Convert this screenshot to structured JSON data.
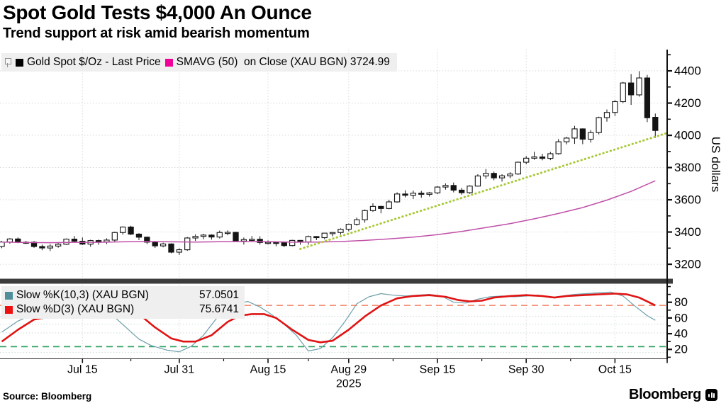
{
  "header": {
    "title": "Spot Gold Tests $4,000 An Ounce",
    "subtitle": "Trend support at risk amid bearish momentum"
  },
  "footer": {
    "source": "Source: Bloomberg",
    "brand": "Bloomberg"
  },
  "colors": {
    "background": "#ffffff",
    "text": "#000000",
    "grid": "#d9d9d9",
    "grid_stoch": "#ccd8d8",
    "divider": "#3c3c3c",
    "candle": "#141414",
    "candle_up_fill": "#ffffff",
    "sma_line": "#c050a8",
    "sma_swatch": "#ee0099",
    "trendline": "#a8c938",
    "k_line": "#6d9faa",
    "k_swatch": "#4f8e9a",
    "d_line": "#e01313",
    "d_swatch": "#ee1111",
    "overbought": "#f08466",
    "oversold": "#2ea35e",
    "legend_bg": "#efefef"
  },
  "chart_data": [
    {
      "type": "candlestick",
      "panel": "price",
      "legend": [
        {
          "label": "Gold Spot $/Oz - Last Price",
          "swatch": "#000000"
        },
        {
          "label": "SMAVG (50)  on Close (XAU BGN) 3724.99",
          "swatch": "#ee0099"
        }
      ],
      "ylabel": "US dollars",
      "ylim": [
        3108,
        4532
      ],
      "yticks": [
        3200,
        3400,
        3600,
        3800,
        4000,
        4200,
        4400
      ],
      "ytick_minor_step": 100,
      "xticks": [
        {
          "i": 10,
          "label": "Jul 15"
        },
        {
          "i": 22,
          "label": "Jul 31"
        },
        {
          "i": 33,
          "label": "Aug 15"
        },
        {
          "i": 43,
          "label": "Aug 29"
        },
        {
          "i": 54,
          "label": "Sep 15"
        },
        {
          "i": 65,
          "label": "Sep 30"
        },
        {
          "i": 76,
          "label": "Oct 15"
        }
      ],
      "year_label": "2025",
      "year_under_tick": 3,
      "grid": true,
      "candles_ohlc": [
        [
          3310,
          3345,
          3300,
          3338
        ],
        [
          3338,
          3362,
          3328,
          3357
        ],
        [
          3357,
          3366,
          3331,
          3336
        ],
        [
          3336,
          3345,
          3326,
          3337
        ],
        [
          3337,
          3344,
          3302,
          3310
        ],
        [
          3310,
          3322,
          3287,
          3301
        ],
        [
          3301,
          3325,
          3282,
          3313
        ],
        [
          3313,
          3331,
          3303,
          3324
        ],
        [
          3324,
          3360,
          3320,
          3356
        ],
        [
          3356,
          3375,
          3338,
          3343
        ],
        [
          3343,
          3366,
          3320,
          3325
        ],
        [
          3325,
          3352,
          3309,
          3347
        ],
        [
          3347,
          3353,
          3321,
          3339
        ],
        [
          3339,
          3361,
          3325,
          3350
        ],
        [
          3350,
          3402,
          3341,
          3397
        ],
        [
          3397,
          3435,
          3384,
          3431
        ],
        [
          3431,
          3439,
          3381,
          3387
        ],
        [
          3387,
          3393,
          3350,
          3368
        ],
        [
          3368,
          3372,
          3325,
          3337
        ],
        [
          3337,
          3345,
          3301,
          3314
        ],
        [
          3314,
          3334,
          3305,
          3326
        ],
        [
          3326,
          3330,
          3268,
          3275
        ],
        [
          3275,
          3299,
          3258,
          3290
        ],
        [
          3290,
          3369,
          3283,
          3363
        ],
        [
          3363,
          3385,
          3345,
          3373
        ],
        [
          3373,
          3389,
          3355,
          3381
        ],
        [
          3381,
          3386,
          3353,
          3369
        ],
        [
          3369,
          3409,
          3360,
          3397
        ],
        [
          3397,
          3410,
          3380,
          3398
        ],
        [
          3398,
          3402,
          3341,
          3344
        ],
        [
          3344,
          3366,
          3322,
          3353
        ],
        [
          3353,
          3375,
          3345,
          3355
        ],
        [
          3355,
          3374,
          3322,
          3335
        ],
        [
          3335,
          3348,
          3323,
          3336
        ],
        [
          3336,
          3341,
          3312,
          3334
        ],
        [
          3334,
          3338,
          3306,
          3316
        ],
        [
          3316,
          3352,
          3311,
          3348
        ],
        [
          3348,
          3351,
          3321,
          3339
        ],
        [
          3339,
          3378,
          3321,
          3372
        ],
        [
          3372,
          3375,
          3350,
          3365
        ],
        [
          3365,
          3395,
          3355,
          3393
        ],
        [
          3393,
          3399,
          3373,
          3397
        ],
        [
          3397,
          3423,
          3384,
          3417
        ],
        [
          3417,
          3453,
          3404,
          3448
        ],
        [
          3448,
          3490,
          3440,
          3476
        ],
        [
          3476,
          3540,
          3458,
          3533
        ],
        [
          3533,
          3578,
          3525,
          3559
        ],
        [
          3559,
          3563,
          3516,
          3546
        ],
        [
          3546,
          3600,
          3541,
          3587
        ],
        [
          3587,
          3646,
          3582,
          3636
        ],
        [
          3636,
          3659,
          3615,
          3628
        ],
        [
          3628,
          3657,
          3605,
          3641
        ],
        [
          3641,
          3655,
          3613,
          3634
        ],
        [
          3634,
          3649,
          3620,
          3643
        ],
        [
          3643,
          3685,
          3635,
          3679
        ],
        [
          3679,
          3702,
          3663,
          3689
        ],
        [
          3689,
          3707,
          3646,
          3660
        ],
        [
          3660,
          3674,
          3632,
          3644
        ],
        [
          3644,
          3690,
          3637,
          3685
        ],
        [
          3685,
          3759,
          3682,
          3748
        ],
        [
          3748,
          3791,
          3730,
          3764
        ],
        [
          3764,
          3775,
          3721,
          3736
        ],
        [
          3736,
          3759,
          3713,
          3749
        ],
        [
          3749,
          3771,
          3734,
          3760
        ],
        [
          3760,
          3837,
          3755,
          3833
        ],
        [
          3833,
          3872,
          3820,
          3858
        ],
        [
          3858,
          3898,
          3848,
          3866
        ],
        [
          3866,
          3885,
          3845,
          3857
        ],
        [
          3857,
          3897,
          3846,
          3886
        ],
        [
          3886,
          3977,
          3880,
          3960
        ],
        [
          3960,
          3990,
          3944,
          3983
        ],
        [
          3983,
          4059,
          3947,
          4040
        ],
        [
          4040,
          4043,
          3945,
          3976
        ],
        [
          3976,
          4032,
          3955,
          4017
        ],
        [
          4017,
          4116,
          4006,
          4110
        ],
        [
          4110,
          4160,
          4085,
          4142
        ],
        [
          4142,
          4218,
          4120,
          4209
        ],
        [
          4209,
          4331,
          4200,
          4325
        ],
        [
          4325,
          4380,
          4189,
          4251
        ],
        [
          4251,
          4398,
          4240,
          4356
        ],
        [
          4356,
          4375,
          4082,
          4109
        ],
        [
          4112,
          4135,
          3984,
          4030
        ]
      ],
      "sma50": {
        "name": "SMAVG (50) on Close (XAU BGN)",
        "last": 3724.99,
        "points": [
          [
            0,
            3338
          ],
          [
            3,
            3335
          ],
          [
            6,
            3334
          ],
          [
            9,
            3336
          ],
          [
            12,
            3336
          ],
          [
            15,
            3339
          ],
          [
            18,
            3341
          ],
          [
            21,
            3339
          ],
          [
            24,
            3338
          ],
          [
            27,
            3340
          ],
          [
            30,
            3341
          ],
          [
            33,
            3340
          ],
          [
            36,
            3337
          ],
          [
            39,
            3338
          ],
          [
            42,
            3341
          ],
          [
            45,
            3348
          ],
          [
            48,
            3357
          ],
          [
            51,
            3368
          ],
          [
            54,
            3384
          ],
          [
            57,
            3404
          ],
          [
            60,
            3428
          ],
          [
            63,
            3452
          ],
          [
            66,
            3482
          ],
          [
            69,
            3515
          ],
          [
            72,
            3552
          ],
          [
            75,
            3598
          ],
          [
            78,
            3652
          ],
          [
            81,
            3718
          ]
        ]
      },
      "trendline": {
        "from": [
          37,
          3295
        ],
        "to": [
          82.5,
          4015
        ]
      }
    },
    {
      "type": "line",
      "panel": "stochastic",
      "legend": [
        {
          "label": "Slow %K(10,3) (XAU BGN)",
          "value": "57.0501",
          "swatch": "#4f8e9a"
        },
        {
          "label": "Slow %D(3) (XAU BGN)",
          "value": "75.6741",
          "swatch": "#ee1111"
        }
      ],
      "ylim": [
        7.6,
        102.3
      ],
      "yticks": [
        20,
        40,
        60,
        80
      ],
      "ytick_minor_step": 10,
      "thresholds": {
        "overbought": 76,
        "oversold": 23.5
      },
      "extra_gridlines": [
        62,
        52,
        41,
        16
      ],
      "series": [
        {
          "name": "Slow %K(10,3)",
          "color": "#6d9faa",
          "width": 1.2,
          "points": [
            [
              0,
              42
            ],
            [
              2,
              56
            ],
            [
              3.5,
              63
            ],
            [
              5,
              59
            ],
            [
              7,
              64
            ],
            [
              9,
              69
            ],
            [
              11,
              73
            ],
            [
              12.5,
              71
            ],
            [
              14,
              61
            ],
            [
              15.5,
              47
            ],
            [
              17,
              33
            ],
            [
              18.5,
              25
            ],
            [
              20.5,
              19
            ],
            [
              22,
              17
            ],
            [
              23.5,
              24
            ],
            [
              25,
              38
            ],
            [
              26.5,
              58
            ],
            [
              28,
              72
            ],
            [
              29.5,
              79
            ],
            [
              30.5,
              81
            ],
            [
              32,
              74
            ],
            [
              33.5,
              64
            ],
            [
              35,
              52
            ],
            [
              36.5,
              38
            ],
            [
              38,
              18
            ],
            [
              39.5,
              21
            ],
            [
              41,
              35
            ],
            [
              42.5,
              55
            ],
            [
              44,
              78
            ],
            [
              45.5,
              87
            ],
            [
              47,
              91
            ],
            [
              48.5,
              89
            ],
            [
              50,
              88
            ],
            [
              51.5,
              89
            ],
            [
              53,
              90
            ],
            [
              54.5,
              88
            ],
            [
              56,
              80
            ],
            [
              57.5,
              79
            ],
            [
              59,
              84
            ],
            [
              60.5,
              87
            ],
            [
              62,
              88
            ],
            [
              63.5,
              87
            ],
            [
              65,
              88
            ],
            [
              66.5,
              89
            ],
            [
              68,
              86
            ],
            [
              69.5,
              88
            ],
            [
              71,
              90
            ],
            [
              72.5,
              91
            ],
            [
              74,
              92
            ],
            [
              75.5,
              93
            ],
            [
              77,
              88
            ],
            [
              78.5,
              75
            ],
            [
              80,
              63
            ],
            [
              81,
              57
            ]
          ]
        },
        {
          "name": "Slow %D(3)",
          "color": "#e01313",
          "width": 2.6,
          "points": [
            [
              0,
              30
            ],
            [
              2,
              45
            ],
            [
              4,
              58
            ],
            [
              6,
              62
            ],
            [
              8,
              63
            ],
            [
              10,
              65
            ],
            [
              12,
              74
            ],
            [
              13.5,
              77
            ],
            [
              15,
              74
            ],
            [
              17,
              65
            ],
            [
              19,
              48
            ],
            [
              21,
              34
            ],
            [
              22.5,
              30
            ],
            [
              24,
              30
            ],
            [
              26,
              38
            ],
            [
              28,
              55
            ],
            [
              29.5,
              63
            ],
            [
              31,
              65
            ],
            [
              32.5,
              65
            ],
            [
              34,
              60
            ],
            [
              36,
              45
            ],
            [
              38,
              32
            ],
            [
              39.5,
              29
            ],
            [
              41,
              31
            ],
            [
              43,
              45
            ],
            [
              45,
              62
            ],
            [
              47,
              76
            ],
            [
              49,
              85
            ],
            [
              51,
              88
            ],
            [
              53,
              89
            ],
            [
              55,
              87
            ],
            [
              56.5,
              83
            ],
            [
              58,
              81
            ],
            [
              59.5,
              82
            ],
            [
              61,
              86
            ],
            [
              63,
              88
            ],
            [
              65,
              89
            ],
            [
              67,
              88
            ],
            [
              68.5,
              86
            ],
            [
              70,
              88
            ],
            [
              72,
              89
            ],
            [
              74,
              90
            ],
            [
              76,
              91
            ],
            [
              77.5,
              90
            ],
            [
              79,
              86
            ],
            [
              80,
              81
            ],
            [
              81,
              76
            ]
          ]
        }
      ]
    }
  ]
}
